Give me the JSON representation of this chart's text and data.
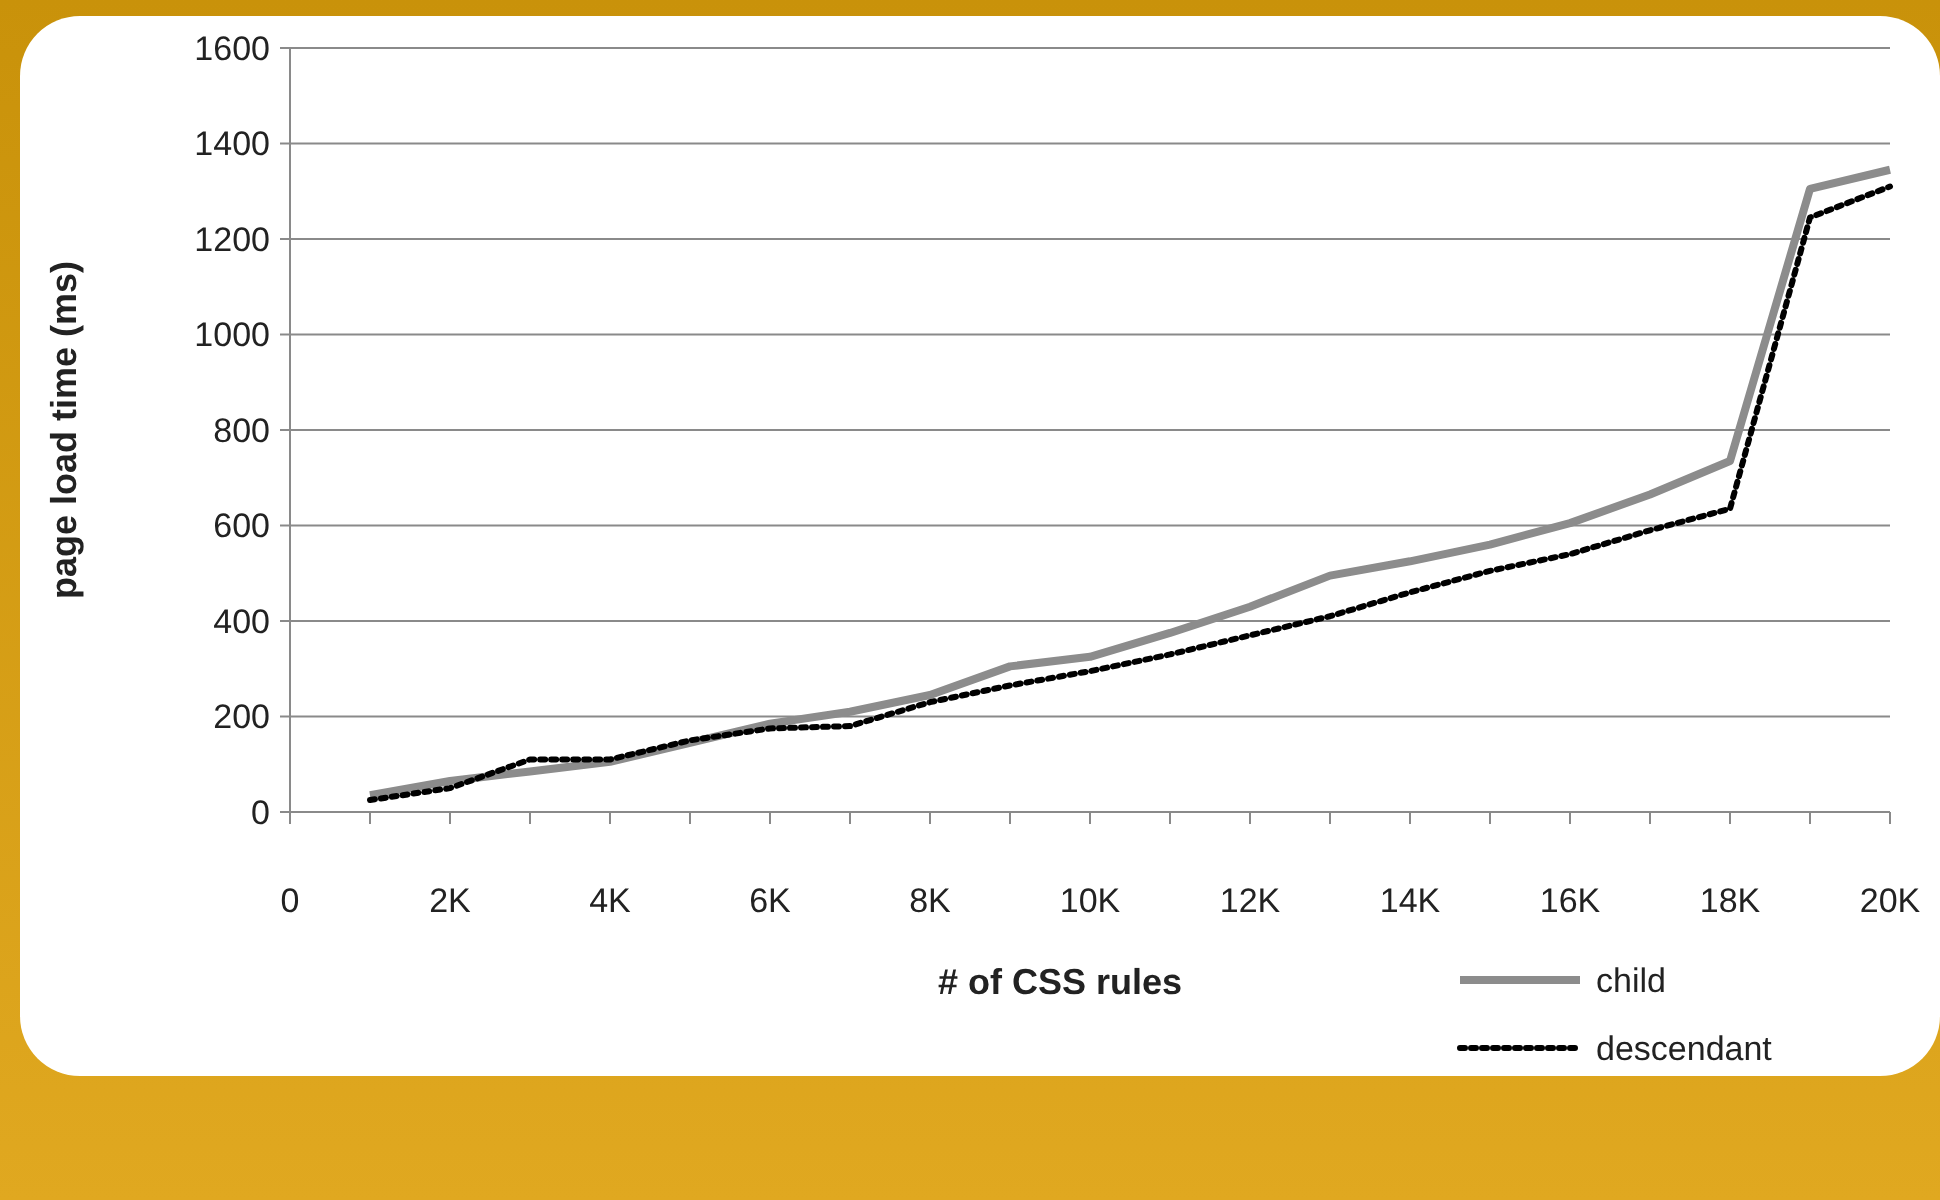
{
  "chart_data": {
    "type": "line",
    "xlabel": "# of CSS rules",
    "ylabel": "page load time (ms)",
    "x": [
      1000,
      2000,
      3000,
      4000,
      5000,
      6000,
      7000,
      8000,
      9000,
      10000,
      11000,
      12000,
      13000,
      14000,
      15000,
      16000,
      17000,
      18000,
      19000,
      20000
    ],
    "series": [
      {
        "name": "child",
        "color": "#8c8c8c",
        "line_style": "solid",
        "values": [
          35,
          65,
          85,
          105,
          145,
          185,
          210,
          245,
          305,
          325,
          375,
          430,
          495,
          525,
          560,
          605,
          665,
          735,
          1305,
          1345
        ]
      },
      {
        "name": "descendant",
        "color": "#000000",
        "line_style": "dotted",
        "values": [
          25,
          50,
          110,
          110,
          150,
          175,
          180,
          230,
          265,
          295,
          330,
          370,
          410,
          460,
          505,
          540,
          590,
          635,
          1245,
          1310
        ]
      }
    ],
    "xlim": [
      0,
      20000
    ],
    "xticks": [
      0,
      {
        "value": 1000,
        "label": null
      },
      {
        "value": 2000,
        "label": "2K"
      },
      {
        "value": 3000,
        "label": null
      },
      {
        "value": 4000,
        "label": "4K"
      },
      {
        "value": 5000,
        "label": null
      },
      {
        "value": 6000,
        "label": "6K"
      },
      {
        "value": 7000,
        "label": null
      },
      {
        "value": 8000,
        "label": "8K"
      },
      {
        "value": 9000,
        "label": null
      },
      {
        "value": 10000,
        "label": "10K"
      },
      {
        "value": 11000,
        "label": null
      },
      {
        "value": 12000,
        "label": "12K"
      },
      {
        "value": 13000,
        "label": null
      },
      {
        "value": 14000,
        "label": "14K"
      },
      {
        "value": 15000,
        "label": null
      },
      {
        "value": 16000,
        "label": "16K"
      },
      {
        "value": 17000,
        "label": null
      },
      {
        "value": 18000,
        "label": "18K"
      },
      {
        "value": 19000,
        "label": null
      },
      {
        "value": 20000,
        "label": "20K"
      }
    ],
    "ylim": [
      0,
      1600
    ],
    "yticks": [
      0,
      200,
      400,
      600,
      800,
      1000,
      1200,
      1400,
      1600
    ],
    "grid": "y",
    "legend": "bottom right",
    "marker": "none"
  }
}
